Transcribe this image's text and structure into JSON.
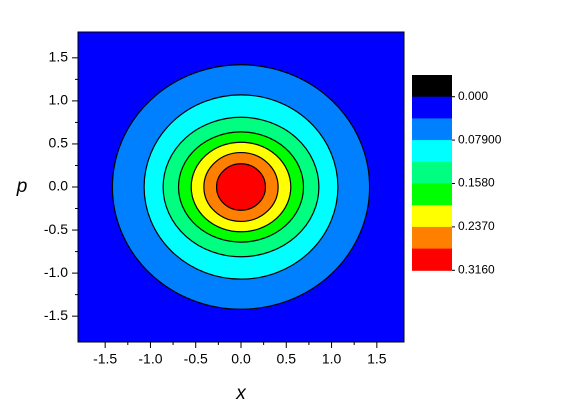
{
  "chart_data": {
    "type": "contour",
    "x_label": "x",
    "y_label": "p",
    "xlim": [
      -1.8,
      1.8
    ],
    "ylim": [
      -1.8,
      1.8
    ],
    "xticks": [
      -1.5,
      {
        "value": -1,
        "label": "-1.0"
      },
      -0.5,
      {
        "value": 0,
        "label": "0.0"
      },
      0.5,
      {
        "value": 1,
        "label": "1.0"
      },
      1.5
    ],
    "yticks": [
      -1.5,
      {
        "value": -1,
        "label": "-1.0"
      },
      -0.5,
      {
        "value": 0,
        "label": "0.0"
      },
      0.5,
      {
        "value": 1,
        "label": "1.0"
      },
      1.5
    ],
    "colorbar": {
      "colors": [
        "#000000",
        "#0000ff",
        "#0080ff",
        "#00ffff",
        "#00ff80",
        "#00ff00",
        "#ffff00",
        "#ff8000",
        "#ff0000"
      ],
      "ticks": [
        {
          "value": 0,
          "label": "0.000"
        },
        {
          "value": 0.079,
          "label": "0.07900"
        },
        {
          "value": 0.158,
          "label": "0.1580"
        },
        {
          "value": 0.237,
          "label": "0.2370"
        },
        {
          "value": 0.316,
          "label": "0.3160"
        }
      ]
    },
    "contours": [
      {
        "level": 0.0395,
        "rx": 1.42,
        "ry": 1.42
      },
      {
        "level": 0.079,
        "rx": 1.07,
        "ry": 1.07
      },
      {
        "level": 0.1185,
        "rx": 0.86,
        "ry": 0.81
      },
      {
        "level": 0.158,
        "rx": 0.69,
        "ry": 0.64
      },
      {
        "level": 0.1975,
        "rx": 0.55,
        "ry": 0.52
      },
      {
        "level": 0.237,
        "rx": 0.41,
        "ry": 0.4
      },
      {
        "level": 0.2765,
        "rx": 0.27,
        "ry": 0.27
      }
    ]
  }
}
